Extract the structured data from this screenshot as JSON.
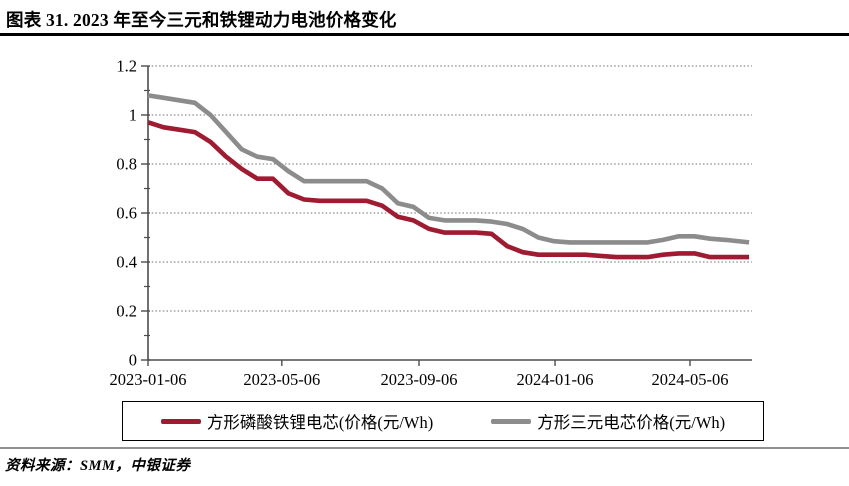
{
  "header": {
    "title": "图表 31. 2023 年至今三元和铁锂动力电池价格变化"
  },
  "footer": {
    "source": "资料来源：SMM，中银证券"
  },
  "chart_data": {
    "type": "line",
    "title": "图表 31. 2023 年至今三元和铁锂动力电池价格变化",
    "xlabel": "",
    "ylabel": "",
    "ylim": [
      0,
      1.2
    ],
    "y_ticks": [
      0,
      0.2,
      0.4,
      0.6,
      0.8,
      1,
      1.2
    ],
    "y_tick_labels": [
      "0",
      "0.2",
      "0.4",
      "0.6",
      "0.8",
      "1",
      "1.2"
    ],
    "y_minor_tick_step": 0.1,
    "x_tick_labels": [
      "2023-01-06",
      "2023-05-06",
      "2023-09-06",
      "2024-01-06",
      "2024-05-06"
    ],
    "grid": "horizontal-dotted",
    "legend_position": "bottom",
    "axis_color": "#4d4d4d",
    "grid_color": "#6e6e6e",
    "x": [
      "2023-01-06",
      "2023-01-20",
      "2023-02-03",
      "2023-02-17",
      "2023-03-03",
      "2023-03-17",
      "2023-03-31",
      "2023-04-14",
      "2023-04-28",
      "2023-05-12",
      "2023-05-26",
      "2023-06-09",
      "2023-06-23",
      "2023-07-07",
      "2023-07-21",
      "2023-08-04",
      "2023-08-18",
      "2023-09-01",
      "2023-09-15",
      "2023-09-29",
      "2023-10-13",
      "2023-10-27",
      "2023-11-10",
      "2023-11-24",
      "2023-12-08",
      "2023-12-22",
      "2024-01-05",
      "2024-01-19",
      "2024-02-02",
      "2024-02-16",
      "2024-03-01",
      "2024-03-15",
      "2024-03-29",
      "2024-04-12",
      "2024-04-26",
      "2024-05-10",
      "2024-05-24",
      "2024-06-07",
      "2024-06-28"
    ],
    "series": [
      {
        "name": "方形磷酸铁锂电芯(价格(元/Wh)",
        "color": "#9e1b32",
        "values": [
          0.97,
          0.95,
          0.94,
          0.93,
          0.89,
          0.83,
          0.78,
          0.74,
          0.74,
          0.68,
          0.655,
          0.65,
          0.65,
          0.65,
          0.65,
          0.63,
          0.585,
          0.57,
          0.535,
          0.52,
          0.52,
          0.52,
          0.515,
          0.465,
          0.44,
          0.43,
          0.43,
          0.43,
          0.43,
          0.425,
          0.42,
          0.42,
          0.42,
          0.43,
          0.435,
          0.435,
          0.42,
          0.42,
          0.42
        ]
      },
      {
        "name": "方形三元电芯价格(元/Wh)",
        "color": "#8c8c8c",
        "values": [
          1.08,
          1.07,
          1.06,
          1.05,
          1.0,
          0.93,
          0.86,
          0.83,
          0.82,
          0.77,
          0.73,
          0.73,
          0.73,
          0.73,
          0.73,
          0.7,
          0.64,
          0.625,
          0.58,
          0.57,
          0.57,
          0.57,
          0.565,
          0.555,
          0.535,
          0.5,
          0.485,
          0.48,
          0.48,
          0.48,
          0.48,
          0.48,
          0.48,
          0.49,
          0.505,
          0.505,
          0.495,
          0.49,
          0.48
        ]
      }
    ]
  }
}
